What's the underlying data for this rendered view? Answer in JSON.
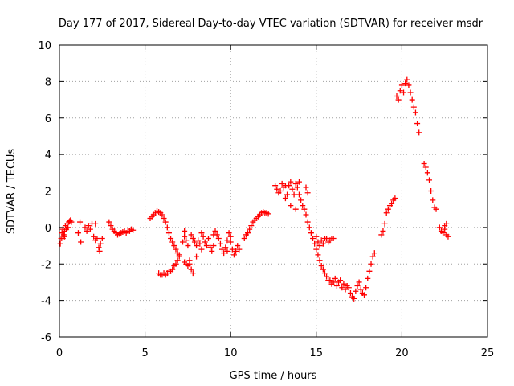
{
  "chart_data": {
    "type": "scatter",
    "title": "Day 177 of 2017, Sidereal Day-to-day VTEC variation (SDTVAR) for receiver msdr",
    "xlabel": "GPS time / hours",
    "ylabel": "SDTVAR / TECUs",
    "xlim": [
      0,
      25
    ],
    "ylim": [
      -6,
      10
    ],
    "xticks": [
      0,
      5,
      10,
      15,
      20,
      25
    ],
    "yticks": [
      -6,
      -4,
      -2,
      0,
      2,
      4,
      6,
      8,
      10
    ],
    "grid": true,
    "marker": "+",
    "series": [
      {
        "name": "SDTVAR",
        "color": "#ff0000",
        "points": [
          [
            0.05,
            -0.9
          ],
          [
            0.1,
            -0.6
          ],
          [
            0.15,
            -0.3
          ],
          [
            0.2,
            -0.1
          ],
          [
            0.25,
            -0.4
          ],
          [
            0.3,
            -0.2
          ],
          [
            0.35,
            0.1
          ],
          [
            0.4,
            -0.1
          ],
          [
            0.45,
            0.2
          ],
          [
            0.5,
            0.0
          ],
          [
            0.55,
            0.3
          ],
          [
            0.6,
            0.35
          ],
          [
            0.65,
            0.4
          ],
          [
            0.7,
            0.3
          ],
          [
            0.2,
            -0.6
          ],
          [
            0.3,
            -0.5
          ],
          [
            1.1,
            -0.3
          ],
          [
            1.2,
            0.3
          ],
          [
            1.25,
            -0.8
          ],
          [
            1.5,
            0.0
          ],
          [
            1.6,
            -0.2
          ],
          [
            1.7,
            0.1
          ],
          [
            1.8,
            -0.1
          ],
          [
            1.9,
            0.2
          ],
          [
            2.0,
            -0.5
          ],
          [
            2.1,
            -0.7
          ],
          [
            2.2,
            -0.6
          ],
          [
            2.3,
            -1.1
          ],
          [
            2.35,
            -1.3
          ],
          [
            2.4,
            -0.9
          ],
          [
            2.5,
            -0.6
          ],
          [
            2.1,
            0.2
          ],
          [
            2.9,
            0.3
          ],
          [
            3.0,
            0.1
          ],
          [
            3.1,
            -0.1
          ],
          [
            3.2,
            -0.2
          ],
          [
            3.3,
            -0.3
          ],
          [
            3.4,
            -0.4
          ],
          [
            3.5,
            -0.35
          ],
          [
            3.6,
            -0.3
          ],
          [
            3.7,
            -0.25
          ],
          [
            3.8,
            -0.2
          ],
          [
            3.9,
            -0.3
          ],
          [
            4.0,
            -0.2
          ],
          [
            4.1,
            -0.2
          ],
          [
            4.2,
            -0.1
          ],
          [
            4.3,
            -0.15
          ],
          [
            5.3,
            0.5
          ],
          [
            5.4,
            0.6
          ],
          [
            5.5,
            0.7
          ],
          [
            5.6,
            0.8
          ],
          [
            5.7,
            0.9
          ],
          [
            5.8,
            0.85
          ],
          [
            5.9,
            0.8
          ],
          [
            6.0,
            0.7
          ],
          [
            6.1,
            0.5
          ],
          [
            6.2,
            0.3
          ],
          [
            6.3,
            0.0
          ],
          [
            6.4,
            -0.3
          ],
          [
            6.5,
            -0.6
          ],
          [
            6.6,
            -0.8
          ],
          [
            6.7,
            -1.0
          ],
          [
            6.8,
            -1.2
          ],
          [
            6.9,
            -1.4
          ],
          [
            7.0,
            -1.5
          ],
          [
            5.8,
            -2.5
          ],
          [
            5.9,
            -2.6
          ],
          [
            6.0,
            -2.6
          ],
          [
            6.1,
            -2.5
          ],
          [
            6.2,
            -2.6
          ],
          [
            6.3,
            -2.5
          ],
          [
            6.4,
            -2.4
          ],
          [
            6.5,
            -2.4
          ],
          [
            6.6,
            -2.3
          ],
          [
            6.7,
            -2.1
          ],
          [
            6.8,
            -2.0
          ],
          [
            6.9,
            -1.8
          ],
          [
            7.0,
            -1.6
          ],
          [
            7.2,
            -0.8
          ],
          [
            7.3,
            -0.5
          ],
          [
            7.3,
            -0.2
          ],
          [
            7.4,
            -0.7
          ],
          [
            7.5,
            -1.0
          ],
          [
            7.3,
            -1.9
          ],
          [
            7.4,
            -2.0
          ],
          [
            7.5,
            -2.1
          ],
          [
            7.6,
            -2.0
          ],
          [
            7.7,
            -2.3
          ],
          [
            7.8,
            -2.5
          ],
          [
            7.6,
            -1.8
          ],
          [
            7.7,
            -0.4
          ],
          [
            7.8,
            -0.6
          ],
          [
            7.9,
            -0.8
          ],
          [
            8.0,
            -1.0
          ],
          [
            8.1,
            -0.7
          ],
          [
            8.2,
            -0.9
          ],
          [
            8.3,
            -1.2
          ],
          [
            8.4,
            -0.5
          ],
          [
            8.5,
            -0.8
          ],
          [
            8.6,
            -1.0
          ],
          [
            8.7,
            -0.6
          ],
          [
            8.8,
            -1.1
          ],
          [
            8.9,
            -1.3
          ],
          [
            9.0,
            -1.0
          ],
          [
            9.1,
            -0.2
          ],
          [
            9.2,
            -0.4
          ],
          [
            9.3,
            -0.6
          ],
          [
            9.4,
            -0.9
          ],
          [
            9.5,
            -1.2
          ],
          [
            9.6,
            -1.4
          ],
          [
            9.7,
            -1.1
          ],
          [
            9.8,
            -0.7
          ],
          [
            9.9,
            -0.3
          ],
          [
            10.0,
            -0.5
          ],
          [
            10.1,
            -1.2
          ],
          [
            10.2,
            -1.5
          ],
          [
            10.3,
            -1.3
          ],
          [
            10.4,
            -1.0
          ],
          [
            10.5,
            -1.2
          ],
          [
            10.0,
            -0.8
          ],
          [
            9.8,
            -1.3
          ],
          [
            8.3,
            -0.3
          ],
          [
            8.0,
            -1.6
          ],
          [
            9.0,
            -0.4
          ],
          [
            10.8,
            -0.6
          ],
          [
            10.9,
            -0.4
          ],
          [
            11.0,
            -0.3
          ],
          [
            11.1,
            -0.1
          ],
          [
            11.2,
            0.1
          ],
          [
            11.3,
            0.3
          ],
          [
            11.4,
            0.4
          ],
          [
            11.5,
            0.5
          ],
          [
            11.6,
            0.6
          ],
          [
            11.7,
            0.7
          ],
          [
            11.8,
            0.8
          ],
          [
            11.9,
            0.85
          ],
          [
            12.0,
            0.8
          ],
          [
            12.1,
            0.8
          ],
          [
            12.2,
            0.75
          ],
          [
            12.6,
            2.3
          ],
          [
            12.7,
            2.1
          ],
          [
            12.8,
            1.9
          ],
          [
            12.9,
            2.0
          ],
          [
            13.0,
            2.4
          ],
          [
            13.1,
            2.2
          ],
          [
            13.2,
            1.6
          ],
          [
            13.3,
            1.8
          ],
          [
            13.4,
            2.3
          ],
          [
            13.5,
            2.5
          ],
          [
            13.6,
            2.1
          ],
          [
            13.7,
            1.8
          ],
          [
            13.8,
            2.4
          ],
          [
            13.9,
            2.2
          ],
          [
            14.0,
            1.8
          ],
          [
            14.1,
            1.5
          ],
          [
            14.2,
            1.2
          ],
          [
            14.3,
            1.0
          ],
          [
            14.4,
            0.7
          ],
          [
            14.5,
            0.3
          ],
          [
            14.6,
            0.0
          ],
          [
            14.7,
            -0.3
          ],
          [
            14.8,
            -0.6
          ],
          [
            14.9,
            -0.9
          ],
          [
            15.0,
            -1.2
          ],
          [
            15.1,
            -1.5
          ],
          [
            15.2,
            -1.8
          ],
          [
            15.3,
            -2.1
          ],
          [
            15.4,
            -2.3
          ],
          [
            15.5,
            -2.5
          ],
          [
            15.6,
            -2.7
          ],
          [
            15.7,
            -2.9
          ],
          [
            14.4,
            2.2
          ],
          [
            14.5,
            1.9
          ],
          [
            13.5,
            1.2
          ],
          [
            13.8,
            1.0
          ],
          [
            14.0,
            2.5
          ],
          [
            13.2,
            2.3
          ],
          [
            15.0,
            -0.5
          ],
          [
            15.1,
            -0.8
          ],
          [
            15.2,
            -1.0
          ],
          [
            15.3,
            -0.7
          ],
          [
            15.4,
            -0.9
          ],
          [
            15.5,
            -0.6
          ],
          [
            15.6,
            -0.6
          ],
          [
            15.7,
            -0.8
          ],
          [
            15.8,
            -0.7
          ],
          [
            15.9,
            -0.6
          ],
          [
            16.0,
            -0.6
          ],
          [
            15.8,
            -2.9
          ],
          [
            15.9,
            -3.1
          ],
          [
            16.0,
            -3.0
          ],
          [
            16.1,
            -2.8
          ],
          [
            16.2,
            -3.2
          ],
          [
            16.3,
            -3.0
          ],
          [
            16.4,
            -2.9
          ],
          [
            16.5,
            -3.3
          ],
          [
            16.6,
            -3.1
          ],
          [
            16.7,
            -3.4
          ],
          [
            16.8,
            -3.2
          ],
          [
            16.9,
            -3.3
          ],
          [
            17.0,
            -3.6
          ],
          [
            17.1,
            -3.8
          ],
          [
            17.2,
            -3.9
          ],
          [
            17.3,
            -3.5
          ],
          [
            17.4,
            -3.2
          ],
          [
            17.5,
            -3.0
          ],
          [
            17.6,
            -3.4
          ],
          [
            17.7,
            -3.6
          ],
          [
            17.8,
            -3.7
          ],
          [
            17.9,
            -3.3
          ],
          [
            18.0,
            -2.8
          ],
          [
            18.1,
            -2.4
          ],
          [
            18.2,
            -2.0
          ],
          [
            18.3,
            -1.6
          ],
          [
            18.4,
            -1.4
          ],
          [
            18.8,
            -0.4
          ],
          [
            18.9,
            -0.2
          ],
          [
            19.0,
            0.2
          ],
          [
            19.1,
            0.8
          ],
          [
            19.2,
            1.0
          ],
          [
            19.3,
            1.2
          ],
          [
            19.4,
            1.3
          ],
          [
            19.5,
            1.5
          ],
          [
            19.6,
            1.6
          ],
          [
            19.7,
            7.2
          ],
          [
            19.8,
            7.0
          ],
          [
            19.9,
            7.5
          ],
          [
            20.0,
            7.8
          ],
          [
            20.1,
            7.4
          ],
          [
            20.2,
            7.9
          ],
          [
            20.3,
            8.1
          ],
          [
            20.4,
            7.8
          ],
          [
            20.5,
            7.4
          ],
          [
            20.6,
            7.0
          ],
          [
            20.7,
            6.6
          ],
          [
            20.8,
            6.3
          ],
          [
            20.9,
            5.7
          ],
          [
            21.0,
            5.2
          ],
          [
            21.3,
            3.5
          ],
          [
            21.4,
            3.3
          ],
          [
            21.5,
            3.0
          ],
          [
            21.6,
            2.6
          ],
          [
            21.7,
            2.0
          ],
          [
            21.8,
            1.5
          ],
          [
            21.9,
            1.1
          ],
          [
            22.0,
            1.0
          ],
          [
            22.2,
            0.0
          ],
          [
            22.3,
            -0.2
          ],
          [
            22.4,
            -0.3
          ],
          [
            22.5,
            0.1
          ],
          [
            22.6,
            -0.4
          ],
          [
            22.7,
            -0.5
          ],
          [
            22.6,
            0.2
          ],
          [
            22.5,
            -0.1
          ]
        ]
      }
    ]
  }
}
